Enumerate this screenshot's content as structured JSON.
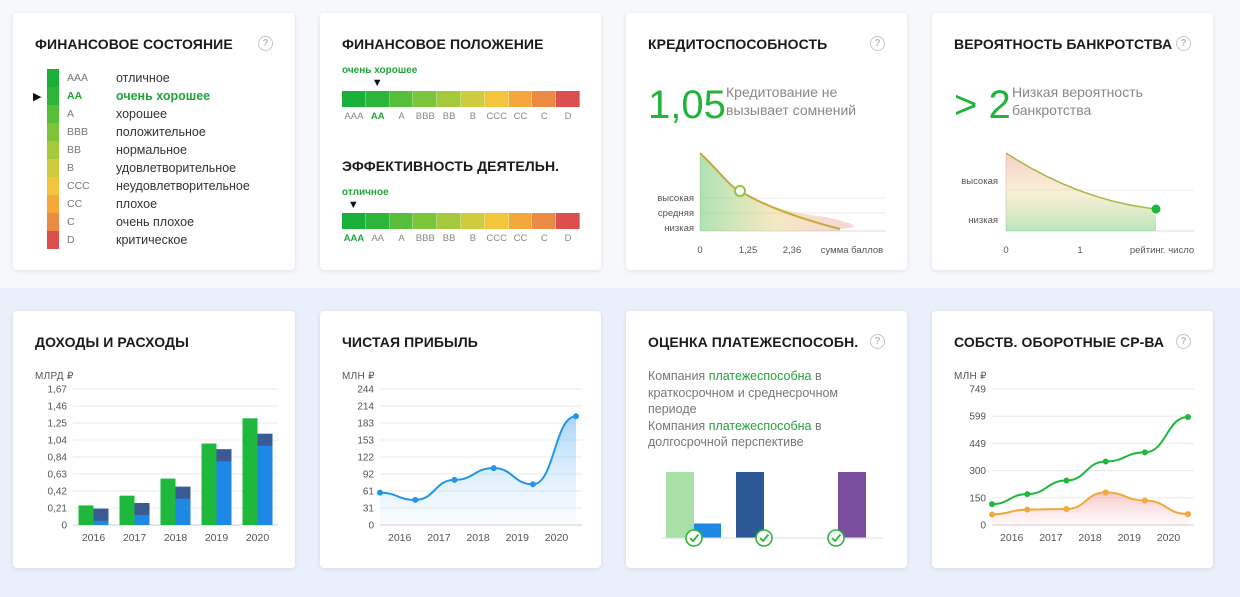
{
  "cards": {
    "fin_state": {
      "title": "ФИНАНСОВОЕ СОСТОЯНИЕ",
      "scale": [
        {
          "code": "AAA",
          "label": "отличное",
          "color": "#1aae3a"
        },
        {
          "code": "AA",
          "label": "очень хорошее",
          "color": "#2db53a",
          "active": true
        },
        {
          "code": "A",
          "label": "хорошее",
          "color": "#58be39"
        },
        {
          "code": "BBB",
          "label": "положительное",
          "color": "#7cc43a"
        },
        {
          "code": "BB",
          "label": "нормальное",
          "color": "#a5c93b"
        },
        {
          "code": "B",
          "label": "удовлетворительное",
          "color": "#cccc3c"
        },
        {
          "code": "CCC",
          "label": "неудовлетворительное",
          "color": "#f2c53b"
        },
        {
          "code": "CC",
          "label": "плохое",
          "color": "#f5a83a"
        },
        {
          "code": "C",
          "label": "очень плохое",
          "color": "#ea8a43"
        },
        {
          "code": "D",
          "label": "критическое",
          "color": "#db4f4f"
        }
      ]
    },
    "fin_position": {
      "title": "ФИНАНСОВОЕ ПОЛОЖЕНИЕ",
      "caption": "очень хорошее",
      "selected_index": 1,
      "codes": [
        "AAA",
        "AA",
        "A",
        "BBB",
        "BB",
        "B",
        "CCC",
        "CC",
        "C",
        "D"
      ]
    },
    "efficiency": {
      "title": "ЭФФЕКТИВНОСТЬ ДЕЯТЕЛЬН.",
      "caption": "отличное",
      "selected_index": 0,
      "codes": [
        "AAA",
        "AA",
        "A",
        "BBB",
        "BB",
        "B",
        "CCC",
        "CC",
        "C",
        "D"
      ]
    },
    "credit": {
      "title": "КРЕДИТОСПОСОБНОСТЬ",
      "value": "1,05",
      "description": "Кредитование не вызывает сомнений",
      "y_levels": [
        "высокая",
        "средняя",
        "низкая"
      ],
      "x_ticks": [
        "0",
        "1,25",
        "2,36"
      ],
      "x_label": "сумма баллов"
    },
    "bankruptcy": {
      "title": "ВЕРОЯТНОСТЬ БАНКРОТСТВА",
      "value": "> 2",
      "description": "Низкая вероятность банкротства",
      "y_levels": [
        "высокая",
        "низкая"
      ],
      "x_ticks": [
        "0",
        "1"
      ],
      "x_label": "рейтинг. число"
    },
    "income": {
      "title": "ДОХОДЫ И РАСХОДЫ",
      "unit": "МЛРД ₽",
      "y_ticks": [
        "1,67",
        "1,46",
        "1,25",
        "1,04",
        "0,84",
        "0,63",
        "0,42",
        "0,21",
        "0"
      ]
    },
    "profit": {
      "title": "ЧИСТАЯ ПРИБЫЛЬ",
      "unit": "МЛН ₽",
      "y_ticks": [
        "244",
        "214",
        "183",
        "153",
        "122",
        "92",
        "61",
        "31",
        "0"
      ]
    },
    "solvency": {
      "title": "ОЦЕНКА ПЛАТЕЖЕСПОСОБН.",
      "text1_a": "Компания ",
      "text1_b": "платежеспособна",
      "text1_c": " в краткосрочном и среднесрочном периоде",
      "text2_a": "Компания ",
      "text2_b": "платежеспособна",
      "text2_c": " в долгосрочной перспективе"
    },
    "working_capital": {
      "title": "СОБСТВ. ОБОРОТНЫЕ СР-ВА",
      "unit": "МЛН ₽",
      "y_ticks": [
        "749",
        "599",
        "449",
        "300",
        "150",
        "0"
      ]
    }
  },
  "chart_data": [
    {
      "type": "bar",
      "title": "ДОХОДЫ И РАСХОДЫ",
      "ylabel": "МЛРД ₽",
      "categories": [
        "2016",
        "2017",
        "2018",
        "2019",
        "2020"
      ],
      "ylim": [
        0,
        1.67
      ],
      "series": [
        {
          "values": [
            0.24,
            0.36,
            0.57,
            1.0,
            1.31
          ],
          "color": "#1db83c"
        },
        {
          "values": [
            0.2,
            0.27,
            0.47,
            0.93,
            1.12
          ],
          "color": "#1e88e5"
        }
      ]
    },
    {
      "type": "line",
      "title": "ЧИСТАЯ ПРИБЫЛЬ",
      "ylabel": "МЛН ₽",
      "x": [
        "2015.6",
        "2016.5",
        "2017.5",
        "2018.5",
        "2019.5",
        "2020.6"
      ],
      "x_ticks": [
        "2016",
        "2017",
        "2018",
        "2019",
        "2020"
      ],
      "ylim": [
        0,
        244
      ],
      "series": [
        {
          "values": [
            58,
            45,
            81,
            102,
            73,
            195
          ],
          "color": "#2196e8"
        }
      ]
    },
    {
      "type": "bar",
      "title": "ОЦЕНКА ПЛАТЕЖЕСПОСОБН.",
      "categories": [
        "1",
        "2",
        "3"
      ],
      "series": [
        {
          "values": [
            1.0,
            1.0,
            1.0
          ],
          "colors": [
            "#a9e0a8",
            "#2c5896",
            "#7b4fa0"
          ]
        },
        {
          "values": [
            0.22,
            0,
            0
          ],
          "colors": [
            "#1e88e5",
            "",
            ""
          ]
        }
      ]
    },
    {
      "type": "line",
      "title": "СОБСТВ. ОБОРОТНЫЕ СР-ВА",
      "ylabel": "МЛН ₽",
      "x": [
        "2015.6",
        "2016.5",
        "2017.5",
        "2018.5",
        "2019.5",
        "2020.6"
      ],
      "x_ticks": [
        "2016",
        "2017",
        "2018",
        "2019",
        "2020"
      ],
      "ylim": [
        0,
        749
      ],
      "series": [
        {
          "values": [
            115,
            170,
            245,
            350,
            400,
            595
          ],
          "color": "#1db83c"
        },
        {
          "values": [
            58,
            85,
            88,
            180,
            135,
            60
          ],
          "color": "#f2a93b"
        }
      ]
    }
  ]
}
